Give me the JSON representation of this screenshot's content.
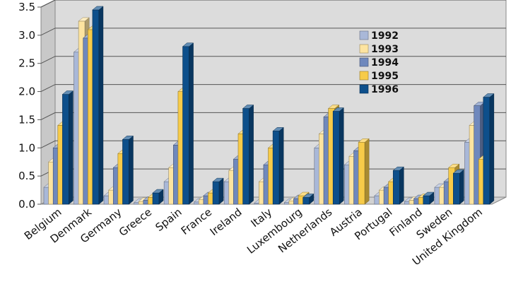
{
  "chart_data": {
    "type": "bar",
    "title": "",
    "xlabel": "",
    "ylabel": "",
    "ylim": [
      0,
      3.5
    ],
    "yticks": [
      "0.0",
      "0.5",
      "1.0",
      "1.5",
      "2.0",
      "2.5",
      "3.0",
      "3.5"
    ],
    "grid": true,
    "legend_position": "top-right",
    "categories": [
      "Belgium",
      "Denmark",
      "Germany",
      "Greece",
      "Spain",
      "France",
      "Ireland",
      "Italy",
      "Luxembourg",
      "Netherlands",
      "Austria",
      "Portugal",
      "Finland",
      "Sweden",
      "United Kingdom"
    ],
    "series": [
      {
        "name": "1992",
        "color": "#a9b8d8",
        "values": [
          0.3,
          2.7,
          0.15,
          0.03,
          0.4,
          0.04,
          0.4,
          0.02,
          0.03,
          1.0,
          0.7,
          0.15,
          0.05,
          0.3,
          1.1
        ]
      },
      {
        "name": "1993",
        "color": "#fde4a0",
        "values": [
          0.75,
          3.25,
          0.25,
          0.05,
          0.65,
          0.08,
          0.6,
          0.4,
          0.06,
          1.25,
          0.85,
          0.25,
          0.07,
          0.3,
          1.4
        ]
      },
      {
        "name": "1994",
        "color": "#6f88bd",
        "values": [
          1.0,
          2.95,
          0.65,
          0.07,
          1.05,
          0.15,
          0.8,
          0.7,
          0.1,
          1.55,
          0.95,
          0.3,
          0.1,
          0.4,
          1.75
        ]
      },
      {
        "name": "1995",
        "color": "#f7cb49",
        "values": [
          1.4,
          3.1,
          0.9,
          0.12,
          2.0,
          0.2,
          1.25,
          1.0,
          0.15,
          1.7,
          1.1,
          0.4,
          0.12,
          0.65,
          0.8
        ]
      },
      {
        "name": "1996",
        "color": "#0d4f8b",
        "values": [
          1.95,
          3.45,
          1.15,
          0.2,
          2.8,
          0.4,
          1.7,
          1.3,
          0.12,
          1.65,
          0.0,
          0.6,
          0.15,
          0.55,
          1.9
        ]
      }
    ]
  }
}
